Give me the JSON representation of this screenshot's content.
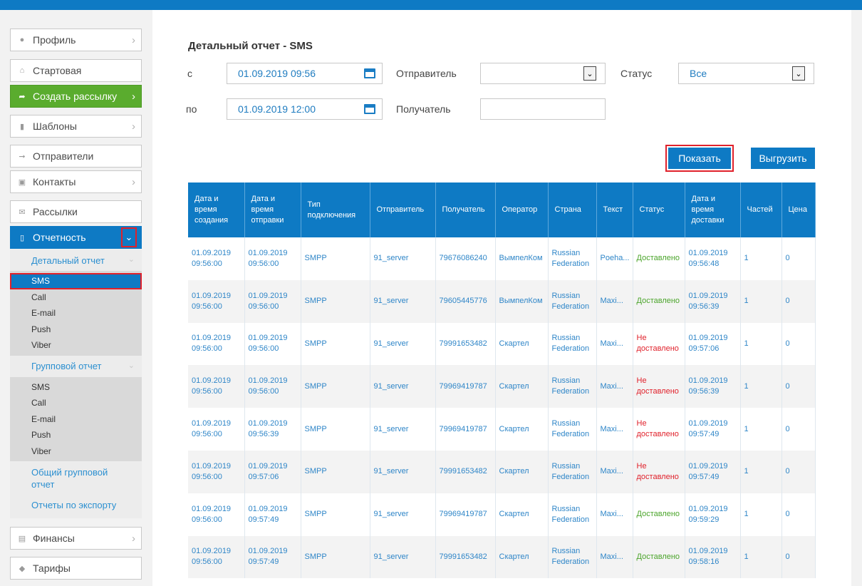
{
  "sidebar": {
    "profile": "Профиль",
    "home": "Стартовая",
    "create_mailing": "Создать рассылку",
    "templates": "Шаблоны",
    "senders": "Отправители",
    "contacts": "Контакты",
    "mailings": "Рассылки",
    "reports": "Отчетность",
    "detailed_report": "Детальный отчет",
    "detailed_items": [
      "SMS",
      "Call",
      "E-mail",
      "Push",
      "Viber"
    ],
    "group_report": "Групповой отчет",
    "group_items": [
      "SMS",
      "Call",
      "E-mail",
      "Push",
      "Viber"
    ],
    "general_group_report": "Общий групповой отчет",
    "export_reports": "Отчеты по экспорту",
    "finance": "Финансы",
    "tariffs": "Тарифы"
  },
  "page": {
    "title": "Детальный отчет - SMS",
    "from_label": "с",
    "to_label": "по",
    "from_value": "01.09.2019 09:56",
    "to_value": "01.09.2019 12:00",
    "sender_label": "Отправитель",
    "sender_value": "",
    "status_label": "Статус",
    "status_value": "Все",
    "recipient_label": "Получатель",
    "recipient_value": "",
    "show_button": "Показать",
    "export_button": "Выгрузить"
  },
  "table": {
    "headers": [
      "Дата и время создания",
      "Дата и время отправки",
      "Тип подключения",
      "Отправитель",
      "Получатель",
      "Оператор",
      "Страна",
      "Текст",
      "Статус",
      "Дата и время доставки",
      "Частей",
      "Цена"
    ],
    "rows": [
      [
        "01.09.2019 09:56:00",
        "01.09.2019 09:56:00",
        "SMPP",
        "91_server",
        "79676086240",
        "ВымпелКом",
        "Russian Federation",
        "Poeha...",
        "Доставлено",
        "01.09.2019 09:56:48",
        "1",
        "0"
      ],
      [
        "01.09.2019 09:56:00",
        "01.09.2019 09:56:00",
        "SMPP",
        "91_server",
        "79605445776",
        "ВымпелКом",
        "Russian Federation",
        "Maxi...",
        "Доставлено",
        "01.09.2019 09:56:39",
        "1",
        "0"
      ],
      [
        "01.09.2019 09:56:00",
        "01.09.2019 09:56:00",
        "SMPP",
        "91_server",
        "79991653482",
        "Скартел",
        "Russian Federation",
        "Maxi...",
        "Не доставлено",
        "01.09.2019 09:57:06",
        "1",
        "0"
      ],
      [
        "01.09.2019 09:56:00",
        "01.09.2019 09:56:00",
        "SMPP",
        "91_server",
        "79969419787",
        "Скартел",
        "Russian Federation",
        "Maxi...",
        "Не доставлено",
        "01.09.2019 09:56:39",
        "1",
        "0"
      ],
      [
        "01.09.2019 09:56:00",
        "01.09.2019 09:56:39",
        "SMPP",
        "91_server",
        "79969419787",
        "Скартел",
        "Russian Federation",
        "Maxi...",
        "Не доставлено",
        "01.09.2019 09:57:49",
        "1",
        "0"
      ],
      [
        "01.09.2019 09:56:00",
        "01.09.2019 09:57:06",
        "SMPP",
        "91_server",
        "79991653482",
        "Скартел",
        "Russian Federation",
        "Maxi...",
        "Не доставлено",
        "01.09.2019 09:57:49",
        "1",
        "0"
      ],
      [
        "01.09.2019 09:56:00",
        "01.09.2019 09:57:49",
        "SMPP",
        "91_server",
        "79969419787",
        "Скартел",
        "Russian Federation",
        "Maxi...",
        "Доставлено",
        "01.09.2019 09:59:29",
        "1",
        "0"
      ],
      [
        "01.09.2019 09:56:00",
        "01.09.2019 09:57:49",
        "SMPP",
        "91_server",
        "79991653482",
        "Скартел",
        "Russian Federation",
        "Maxi...",
        "Доставлено",
        "01.09.2019 09:58:16",
        "1",
        "0"
      ]
    ]
  },
  "colors": {
    "accent": "#0e7ac4",
    "green": "#5aac2e",
    "highlight": "#e0212b",
    "delivered": "#4ca52c",
    "not_delivered": "#e0212b"
  }
}
